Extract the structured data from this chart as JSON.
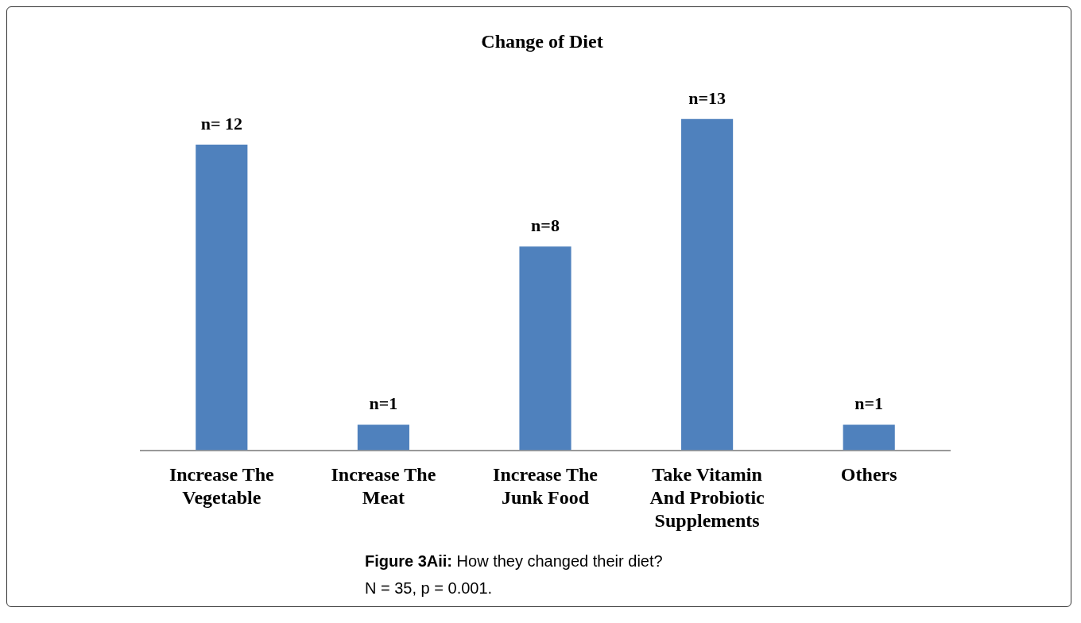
{
  "chart_data": {
    "type": "bar",
    "title": "Change of Diet",
    "categories": [
      "Increase The Vegetable",
      "Increase The Meat",
      "Increase The Junk Food",
      "Take Vitamin And Probiotic Supplements",
      "Others"
    ],
    "values": [
      12,
      1,
      8,
      13,
      1
    ],
    "value_labels": [
      "n= 12",
      "n=1",
      "n=8",
      "n=13",
      "n=1"
    ],
    "color": "#4f81bd",
    "grid": false,
    "legend": false,
    "annotations": [
      "Figure 3Aii: How they changed their diet?",
      "N = 35, p = 0.001."
    ]
  }
}
